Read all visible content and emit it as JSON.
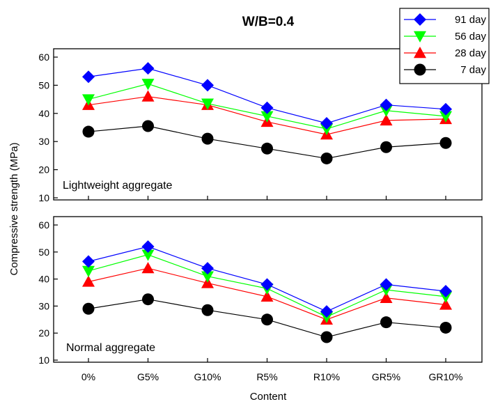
{
  "chart_data": {
    "type": "line",
    "title": "W/B=0.4",
    "xlabel": "Content",
    "ylabel": "Compressive strength (MPa)",
    "categories": [
      "0%",
      "G5%",
      "G10%",
      "R5%",
      "R10%",
      "GR5%",
      "GR10%"
    ],
    "legend": {
      "placement": "top-right",
      "entries": [
        "91 day",
        "56 day",
        "28 day",
        "7 day"
      ]
    },
    "grid": false,
    "panels": [
      {
        "label": "Lightweight aggregate",
        "ylim": [
          10,
          60
        ],
        "yticks": [
          10,
          20,
          30,
          40,
          50,
          60
        ],
        "series": [
          {
            "name": "91 day",
            "color": "#0000ff",
            "marker": "diamond",
            "values": [
              53,
              56,
              50,
              42,
              36.5,
              43,
              41.5
            ]
          },
          {
            "name": "56 day",
            "color": "#00ff00",
            "marker": "triangle-down",
            "values": [
              45,
              50.5,
              43.5,
              39,
              34.5,
              41,
              39
            ]
          },
          {
            "name": "28 day",
            "color": "#ff0000",
            "marker": "triangle-up",
            "values": [
              43,
              46,
              43,
              37,
              32.5,
              37.5,
              38
            ]
          },
          {
            "name": "7 day",
            "color": "#000000",
            "marker": "circle",
            "values": [
              33.5,
              35.5,
              31,
              27.5,
              24,
              28,
              29.5
            ]
          }
        ]
      },
      {
        "label": "Normal  aggregate",
        "ylim": [
          10,
          60
        ],
        "yticks": [
          10,
          20,
          30,
          40,
          50,
          60
        ],
        "series": [
          {
            "name": "91 day",
            "color": "#0000ff",
            "marker": "diamond",
            "values": [
              46.5,
              52,
              44,
              38,
              28,
              38,
              35.5
            ]
          },
          {
            "name": "56 day",
            "color": "#00ff00",
            "marker": "triangle-down",
            "values": [
              43,
              49,
              41,
              36.5,
              26,
              36,
              33.5
            ]
          },
          {
            "name": "28 day",
            "color": "#ff0000",
            "marker": "triangle-up",
            "values": [
              39,
              44,
              38.5,
              33.5,
              25,
              33,
              30.5
            ]
          },
          {
            "name": "7 day",
            "color": "#000000",
            "marker": "circle",
            "values": [
              29,
              32.5,
              28.5,
              25,
              18.5,
              24,
              22
            ]
          }
        ]
      }
    ]
  }
}
